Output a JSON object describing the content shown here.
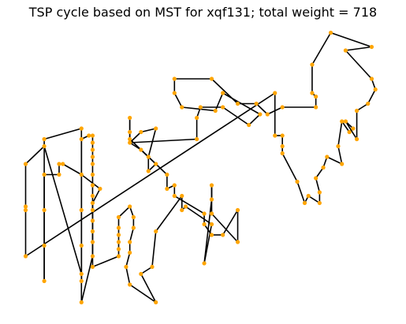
{
  "chart_data": {
    "type": "line",
    "title": "TSP cycle based on MST for xqf131; total weight = 718",
    "xlabel": "",
    "ylabel": "",
    "axes_visible": false,
    "grid": false,
    "line_color": "#000000",
    "marker_color": "#ffa500",
    "tour": [
      [
        0,
        13
      ],
      [
        0,
        26
      ],
      [
        0,
        27
      ],
      [
        0,
        39
      ],
      [
        5,
        44
      ],
      [
        15,
        8
      ],
      [
        15,
        0
      ],
      [
        18,
        13
      ],
      [
        18,
        23
      ],
      [
        18,
        28
      ],
      [
        20,
        32
      ],
      [
        15,
        36
      ],
      [
        10,
        39
      ],
      [
        9,
        39
      ],
      [
        9,
        36
      ],
      [
        5,
        36
      ],
      [
        5,
        26
      ],
      [
        5,
        16
      ],
      [
        5,
        6
      ],
      [
        5,
        16
      ],
      [
        5,
        26
      ],
      [
        5,
        36
      ],
      [
        5,
        46
      ],
      [
        15,
        49
      ],
      [
        15,
        6
      ],
      [
        15,
        16
      ],
      [
        15,
        26
      ],
      [
        15,
        36
      ],
      [
        15,
        46
      ],
      [
        17,
        47
      ],
      [
        18,
        47
      ],
      [
        18,
        45
      ],
      [
        18,
        43
      ],
      [
        18,
        41
      ],
      [
        18,
        39
      ],
      [
        18,
        36
      ],
      [
        18,
        33
      ],
      [
        18,
        30
      ],
      [
        18,
        26
      ],
      [
        18,
        23
      ],
      [
        18,
        20
      ],
      [
        18,
        17
      ],
      [
        18,
        13
      ],
      [
        18,
        10
      ],
      [
        25,
        13
      ],
      [
        25,
        15
      ],
      [
        25,
        17
      ],
      [
        25,
        19
      ],
      [
        25,
        21
      ],
      [
        25,
        24
      ],
      [
        28,
        27
      ],
      [
        29,
        24
      ],
      [
        29,
        21
      ],
      [
        28,
        17
      ],
      [
        28,
        14
      ],
      [
        27,
        10
      ],
      [
        28,
        5
      ],
      [
        35,
        0
      ],
      [
        31,
        8
      ],
      [
        34,
        10
      ],
      [
        35,
        20
      ],
      [
        42,
        30
      ],
      [
        42,
        26
      ],
      [
        43,
        27
      ],
      [
        50,
        22
      ],
      [
        48,
        11
      ],
      [
        50,
        29
      ],
      [
        50,
        33
      ],
      [
        50,
        25
      ],
      [
        57,
        17
      ],
      [
        57,
        26
      ],
      [
        53,
        19
      ],
      [
        50,
        19
      ],
      [
        48,
        22
      ],
      [
        48,
        25
      ],
      [
        40,
        30
      ],
      [
        40,
        33
      ],
      [
        38,
        32
      ],
      [
        38,
        36
      ],
      [
        28,
        46
      ],
      [
        28,
        48
      ],
      [
        28,
        52
      ],
      [
        28,
        45
      ],
      [
        31,
        48
      ],
      [
        35,
        49
      ],
      [
        33,
        41
      ],
      [
        33,
        37
      ],
      [
        35,
        39
      ],
      [
        31,
        43
      ],
      [
        28,
        45
      ],
      [
        46,
        46
      ],
      [
        46,
        52
      ],
      [
        47,
        55
      ],
      [
        53,
        55
      ],
      [
        60,
        50
      ],
      [
        63,
        53
      ],
      [
        53,
        59
      ],
      [
        51,
        54
      ],
      [
        42,
        55
      ],
      [
        40,
        59
      ],
      [
        40,
        63
      ],
      [
        50,
        63
      ],
      [
        57,
        56
      ],
      [
        62,
        56
      ],
      [
        65,
        53
      ],
      [
        69,
        55
      ],
      [
        78,
        55
      ],
      [
        78,
        58
      ],
      [
        77,
        59
      ],
      [
        77,
        67
      ],
      [
        82,
        76
      ],
      [
        93,
        72
      ],
      [
        86,
        71
      ],
      [
        93,
        63
      ],
      [
        94,
        60
      ],
      [
        92,
        56
      ],
      [
        89,
        54
      ],
      [
        89,
        46
      ],
      [
        86,
        51
      ],
      [
        88,
        49
      ],
      [
        87,
        48
      ],
      [
        85,
        51
      ],
      [
        84,
        44
      ],
      [
        85,
        39
      ],
      [
        81,
        41
      ],
      [
        80,
        38
      ],
      [
        78,
        35
      ],
      [
        79,
        31
      ],
      [
        79,
        28
      ],
      [
        76,
        30
      ],
      [
        75,
        28
      ],
      [
        73,
        34
      ],
      [
        69,
        42
      ],
      [
        69,
        44
      ],
      [
        69,
        47
      ],
      [
        67,
        47
      ],
      [
        67,
        59
      ],
      [
        0,
        13
      ]
    ]
  }
}
